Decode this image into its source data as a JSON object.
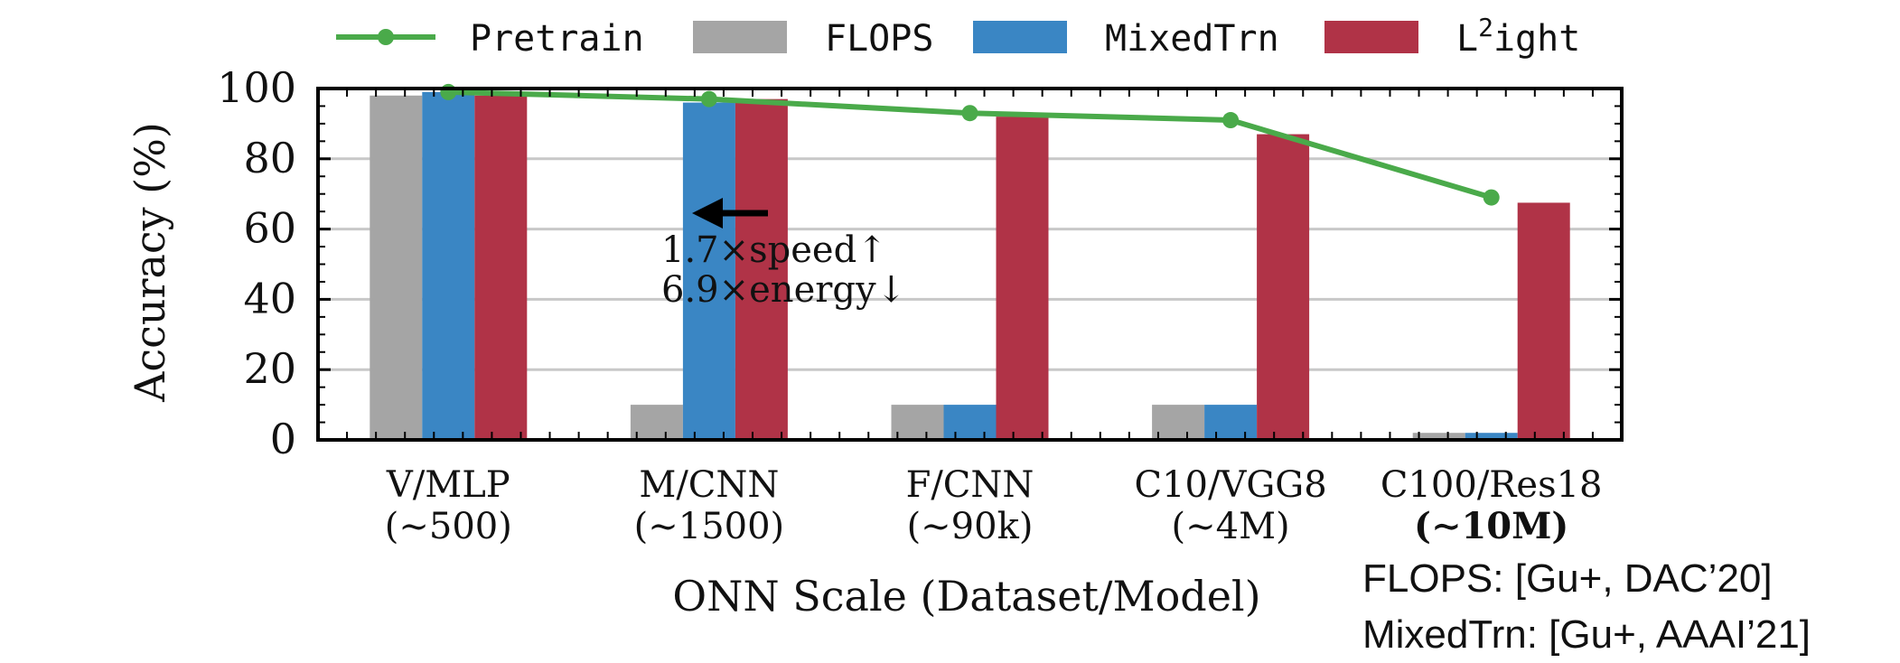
{
  "chart_data": {
    "type": "bar",
    "categories": [
      {
        "name": "V/MLP",
        "size": "(∼500)",
        "bold": false
      },
      {
        "name": "M/CNN",
        "size": "(∼1500)",
        "bold": false
      },
      {
        "name": "F/CNN",
        "size": "(∼90k)",
        "bold": false
      },
      {
        "name": "C10/VGG8",
        "size": "(∼4M)",
        "bold": false
      },
      {
        "name": "C100/Res18",
        "size": "(∼10M)",
        "bold": true
      }
    ],
    "series": [
      {
        "name": "FLOPS",
        "kind": "bar",
        "color": "#a5a5a5",
        "values": [
          98,
          10,
          10,
          10,
          2
        ]
      },
      {
        "name": "MixedTrn",
        "kind": "bar",
        "color": "#3a86c4",
        "values": [
          99,
          96,
          10,
          10,
          2
        ]
      },
      {
        "name": "L²ight",
        "kind": "bar",
        "color": "#b03347",
        "values": [
          98,
          97,
          92,
          87,
          67.5
        ]
      },
      {
        "name": "Pretrain",
        "kind": "line",
        "color": "#4aaa4a",
        "values": [
          99,
          97,
          93,
          91,
          69
        ]
      }
    ],
    "legend_labels": {
      "pretrain": "Pretrain",
      "flops": "FLOPS",
      "mixedtrn": "MixedTrn",
      "l2ight_base": "L",
      "l2ight_sup": "2",
      "l2ight_rest": "ight"
    },
    "title": "",
    "xlabel": "ONN Scale (Dataset/Model)",
    "ylabel": "Accuracy (%)",
    "ylim": [
      0,
      100
    ],
    "yticks": [
      0,
      20,
      40,
      60,
      80,
      100
    ],
    "grid": true,
    "legend_position": "top",
    "annotation": {
      "line1": "1.7×speed↑",
      "line2": "6.9×energy↓",
      "arrow": "left-arrow"
    }
  },
  "references": [
    "FLOPS: [Gu+, DAC’20]",
    "MixedTrn: [Gu+, AAAI’21]"
  ]
}
